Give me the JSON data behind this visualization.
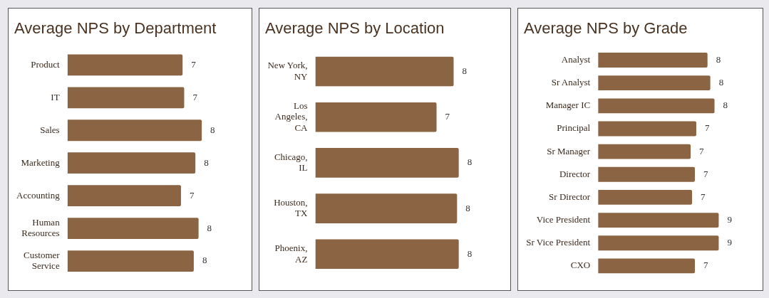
{
  "chart_data": [
    {
      "type": "bar",
      "orientation": "horizontal",
      "title": "Average NPS by Department",
      "categories": [
        "Product",
        "IT",
        "Sales",
        "Marketing",
        "Accounting",
        "Human Resources",
        "Customer Service"
      ],
      "values": [
        7.2,
        7.3,
        8.4,
        8.0,
        7.1,
        8.2,
        7.9
      ],
      "value_labels": [
        "7",
        "7",
        "8",
        "8",
        "7",
        "8",
        "8"
      ],
      "color": "#8b6443"
    },
    {
      "type": "bar",
      "orientation": "horizontal",
      "title": "Average NPS by Location",
      "categories": [
        "New York, NY",
        "Los Angeles, CA",
        "Chicago, IL",
        "Houston, TX",
        "Phoenix, AZ"
      ],
      "values": [
        8.1,
        7.1,
        8.4,
        8.3,
        8.4
      ],
      "value_labels": [
        "8",
        "7",
        "8",
        "8",
        "8"
      ],
      "color": "#8b6443"
    },
    {
      "type": "bar",
      "orientation": "horizontal",
      "title": "Average NPS by Grade",
      "categories": [
        "Analyst",
        "Sr Analyst",
        "Manager IC",
        "Principal",
        "Sr Manager",
        "Director",
        "Sr Director",
        "Vice President",
        "Sr Vice President",
        "CXO"
      ],
      "values": [
        7.8,
        8.0,
        8.3,
        7.0,
        6.6,
        6.9,
        6.7,
        8.6,
        8.6,
        6.9
      ],
      "value_labels": [
        "8",
        "8",
        "8",
        "7",
        "7",
        "7",
        "7",
        "9",
        "9",
        "7"
      ],
      "color": "#8b6443"
    }
  ]
}
